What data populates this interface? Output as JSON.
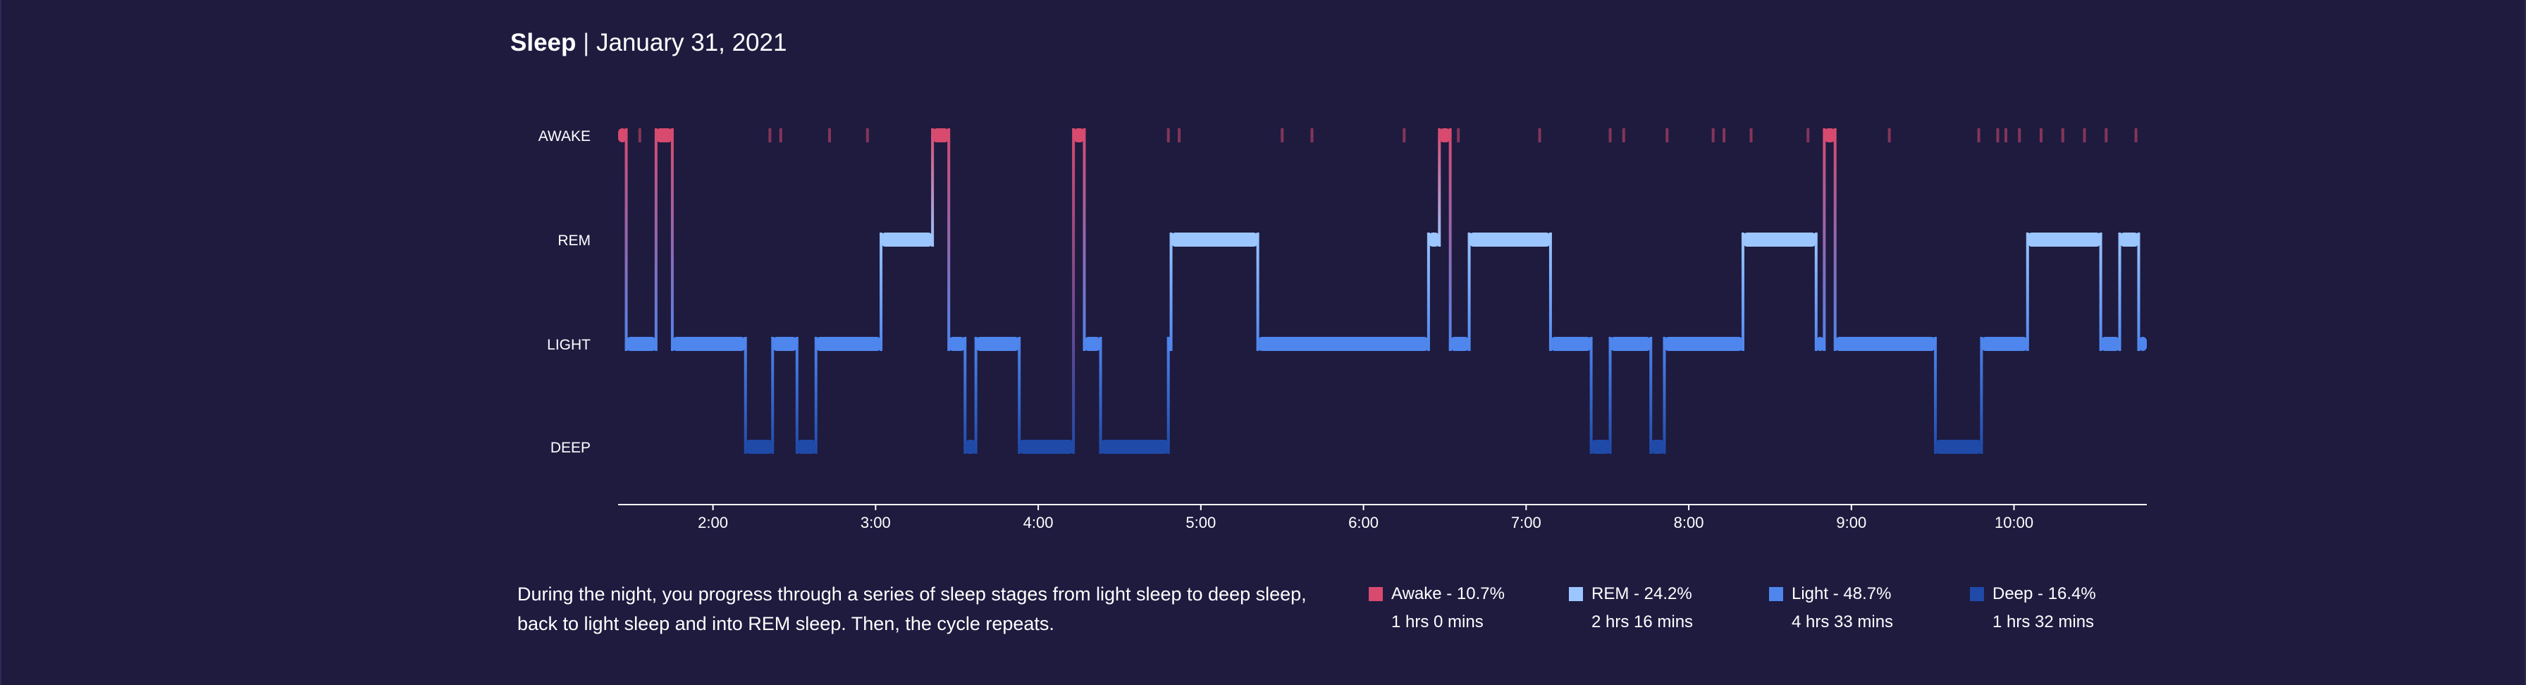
{
  "header": {
    "title": "Sleep",
    "separator": "|",
    "date": "January 31, 2021"
  },
  "description": "During the night, you progress through a series of sleep stages from light sleep to deep sleep, back to light sleep and into REM sleep. Then, the cycle repeats.",
  "legend": [
    {
      "label": "Awake - 10.7%",
      "duration": "1 hrs 0 mins",
      "color": "#d84a6e"
    },
    {
      "label": "REM - 24.2%",
      "duration": "2 hrs 16 mins",
      "color": "#9cc6ff"
    },
    {
      "label": "Light - 48.7%",
      "duration": "4 hrs 33 mins",
      "color": "#4f86ee"
    },
    {
      "label": "Deep - 16.4%",
      "duration": "1 hrs 32 mins",
      "color": "#1f4aa8"
    }
  ],
  "chart_data": {
    "type": "step",
    "title": "Sleep | January 31, 2021",
    "stages": [
      "AWAKE",
      "REM",
      "LIGHT",
      "DEEP"
    ],
    "stage_colors": {
      "AWAKE": "#d84a6e",
      "REM": "#9cc6ff",
      "LIGHT": "#4f86ee",
      "DEEP": "#1f4aa8"
    },
    "xlim": [
      "01:25",
      "10:49"
    ],
    "x_ticks": [
      "2:00",
      "3:00",
      "4:00",
      "5:00",
      "6:00",
      "7:00",
      "8:00",
      "9:00",
      "10:00"
    ],
    "x_unit": "clock time",
    "segments": [
      {
        "start": "01:25",
        "end": "01:28",
        "stage": "AWAKE"
      },
      {
        "start": "01:28",
        "end": "01:39",
        "stage": "LIGHT"
      },
      {
        "start": "01:39",
        "end": "01:45",
        "stage": "AWAKE"
      },
      {
        "start": "01:45",
        "end": "02:12",
        "stage": "LIGHT"
      },
      {
        "start": "02:12",
        "end": "02:22",
        "stage": "DEEP"
      },
      {
        "start": "02:22",
        "end": "02:31",
        "stage": "LIGHT"
      },
      {
        "start": "02:31",
        "end": "02:38",
        "stage": "DEEP"
      },
      {
        "start": "02:38",
        "end": "03:02",
        "stage": "LIGHT"
      },
      {
        "start": "03:02",
        "end": "03:21",
        "stage": "REM"
      },
      {
        "start": "03:21",
        "end": "03:27",
        "stage": "AWAKE"
      },
      {
        "start": "03:27",
        "end": "03:33",
        "stage": "LIGHT"
      },
      {
        "start": "03:33",
        "end": "03:37",
        "stage": "DEEP"
      },
      {
        "start": "03:37",
        "end": "03:53",
        "stage": "LIGHT"
      },
      {
        "start": "03:53",
        "end": "04:13",
        "stage": "DEEP"
      },
      {
        "start": "04:13",
        "end": "04:17",
        "stage": "AWAKE"
      },
      {
        "start": "04:17",
        "end": "04:23",
        "stage": "LIGHT"
      },
      {
        "start": "04:23",
        "end": "04:48",
        "stage": "DEEP"
      },
      {
        "start": "04:48",
        "end": "04:49",
        "stage": "LIGHT"
      },
      {
        "start": "04:49",
        "end": "05:21",
        "stage": "REM"
      },
      {
        "start": "05:21",
        "end": "06:24",
        "stage": "LIGHT"
      },
      {
        "start": "06:24",
        "end": "06:28",
        "stage": "REM"
      },
      {
        "start": "06:28",
        "end": "06:32",
        "stage": "AWAKE"
      },
      {
        "start": "06:32",
        "end": "06:39",
        "stage": "LIGHT"
      },
      {
        "start": "06:39",
        "end": "07:09",
        "stage": "REM"
      },
      {
        "start": "07:09",
        "end": "07:24",
        "stage": "LIGHT"
      },
      {
        "start": "07:24",
        "end": "07:31",
        "stage": "DEEP"
      },
      {
        "start": "07:31",
        "end": "07:46",
        "stage": "LIGHT"
      },
      {
        "start": "07:46",
        "end": "07:51",
        "stage": "DEEP"
      },
      {
        "start": "07:51",
        "end": "08:20",
        "stage": "LIGHT"
      },
      {
        "start": "08:20",
        "end": "08:47",
        "stage": "REM"
      },
      {
        "start": "08:47",
        "end": "08:50",
        "stage": "LIGHT"
      },
      {
        "start": "08:50",
        "end": "08:54",
        "stage": "AWAKE"
      },
      {
        "start": "08:54",
        "end": "09:31",
        "stage": "LIGHT"
      },
      {
        "start": "09:31",
        "end": "09:48",
        "stage": "DEEP"
      },
      {
        "start": "09:48",
        "end": "10:05",
        "stage": "LIGHT"
      },
      {
        "start": "10:05",
        "end": "10:32",
        "stage": "REM"
      },
      {
        "start": "10:32",
        "end": "10:39",
        "stage": "LIGHT"
      },
      {
        "start": "10:39",
        "end": "10:46",
        "stage": "REM"
      },
      {
        "start": "10:46",
        "end": "10:49",
        "stage": "LIGHT"
      }
    ],
    "brief_awakenings": [
      "01:33",
      "02:21",
      "02:25",
      "02:43",
      "02:57",
      "04:48",
      "04:52",
      "05:30",
      "05:41",
      "06:15",
      "06:35",
      "07:05",
      "07:31",
      "07:36",
      "07:52",
      "08:09",
      "08:13",
      "08:23",
      "08:44",
      "09:14",
      "09:47",
      "09:54",
      "09:57",
      "10:02",
      "10:10",
      "10:18",
      "10:26",
      "10:34",
      "10:45"
    ]
  }
}
